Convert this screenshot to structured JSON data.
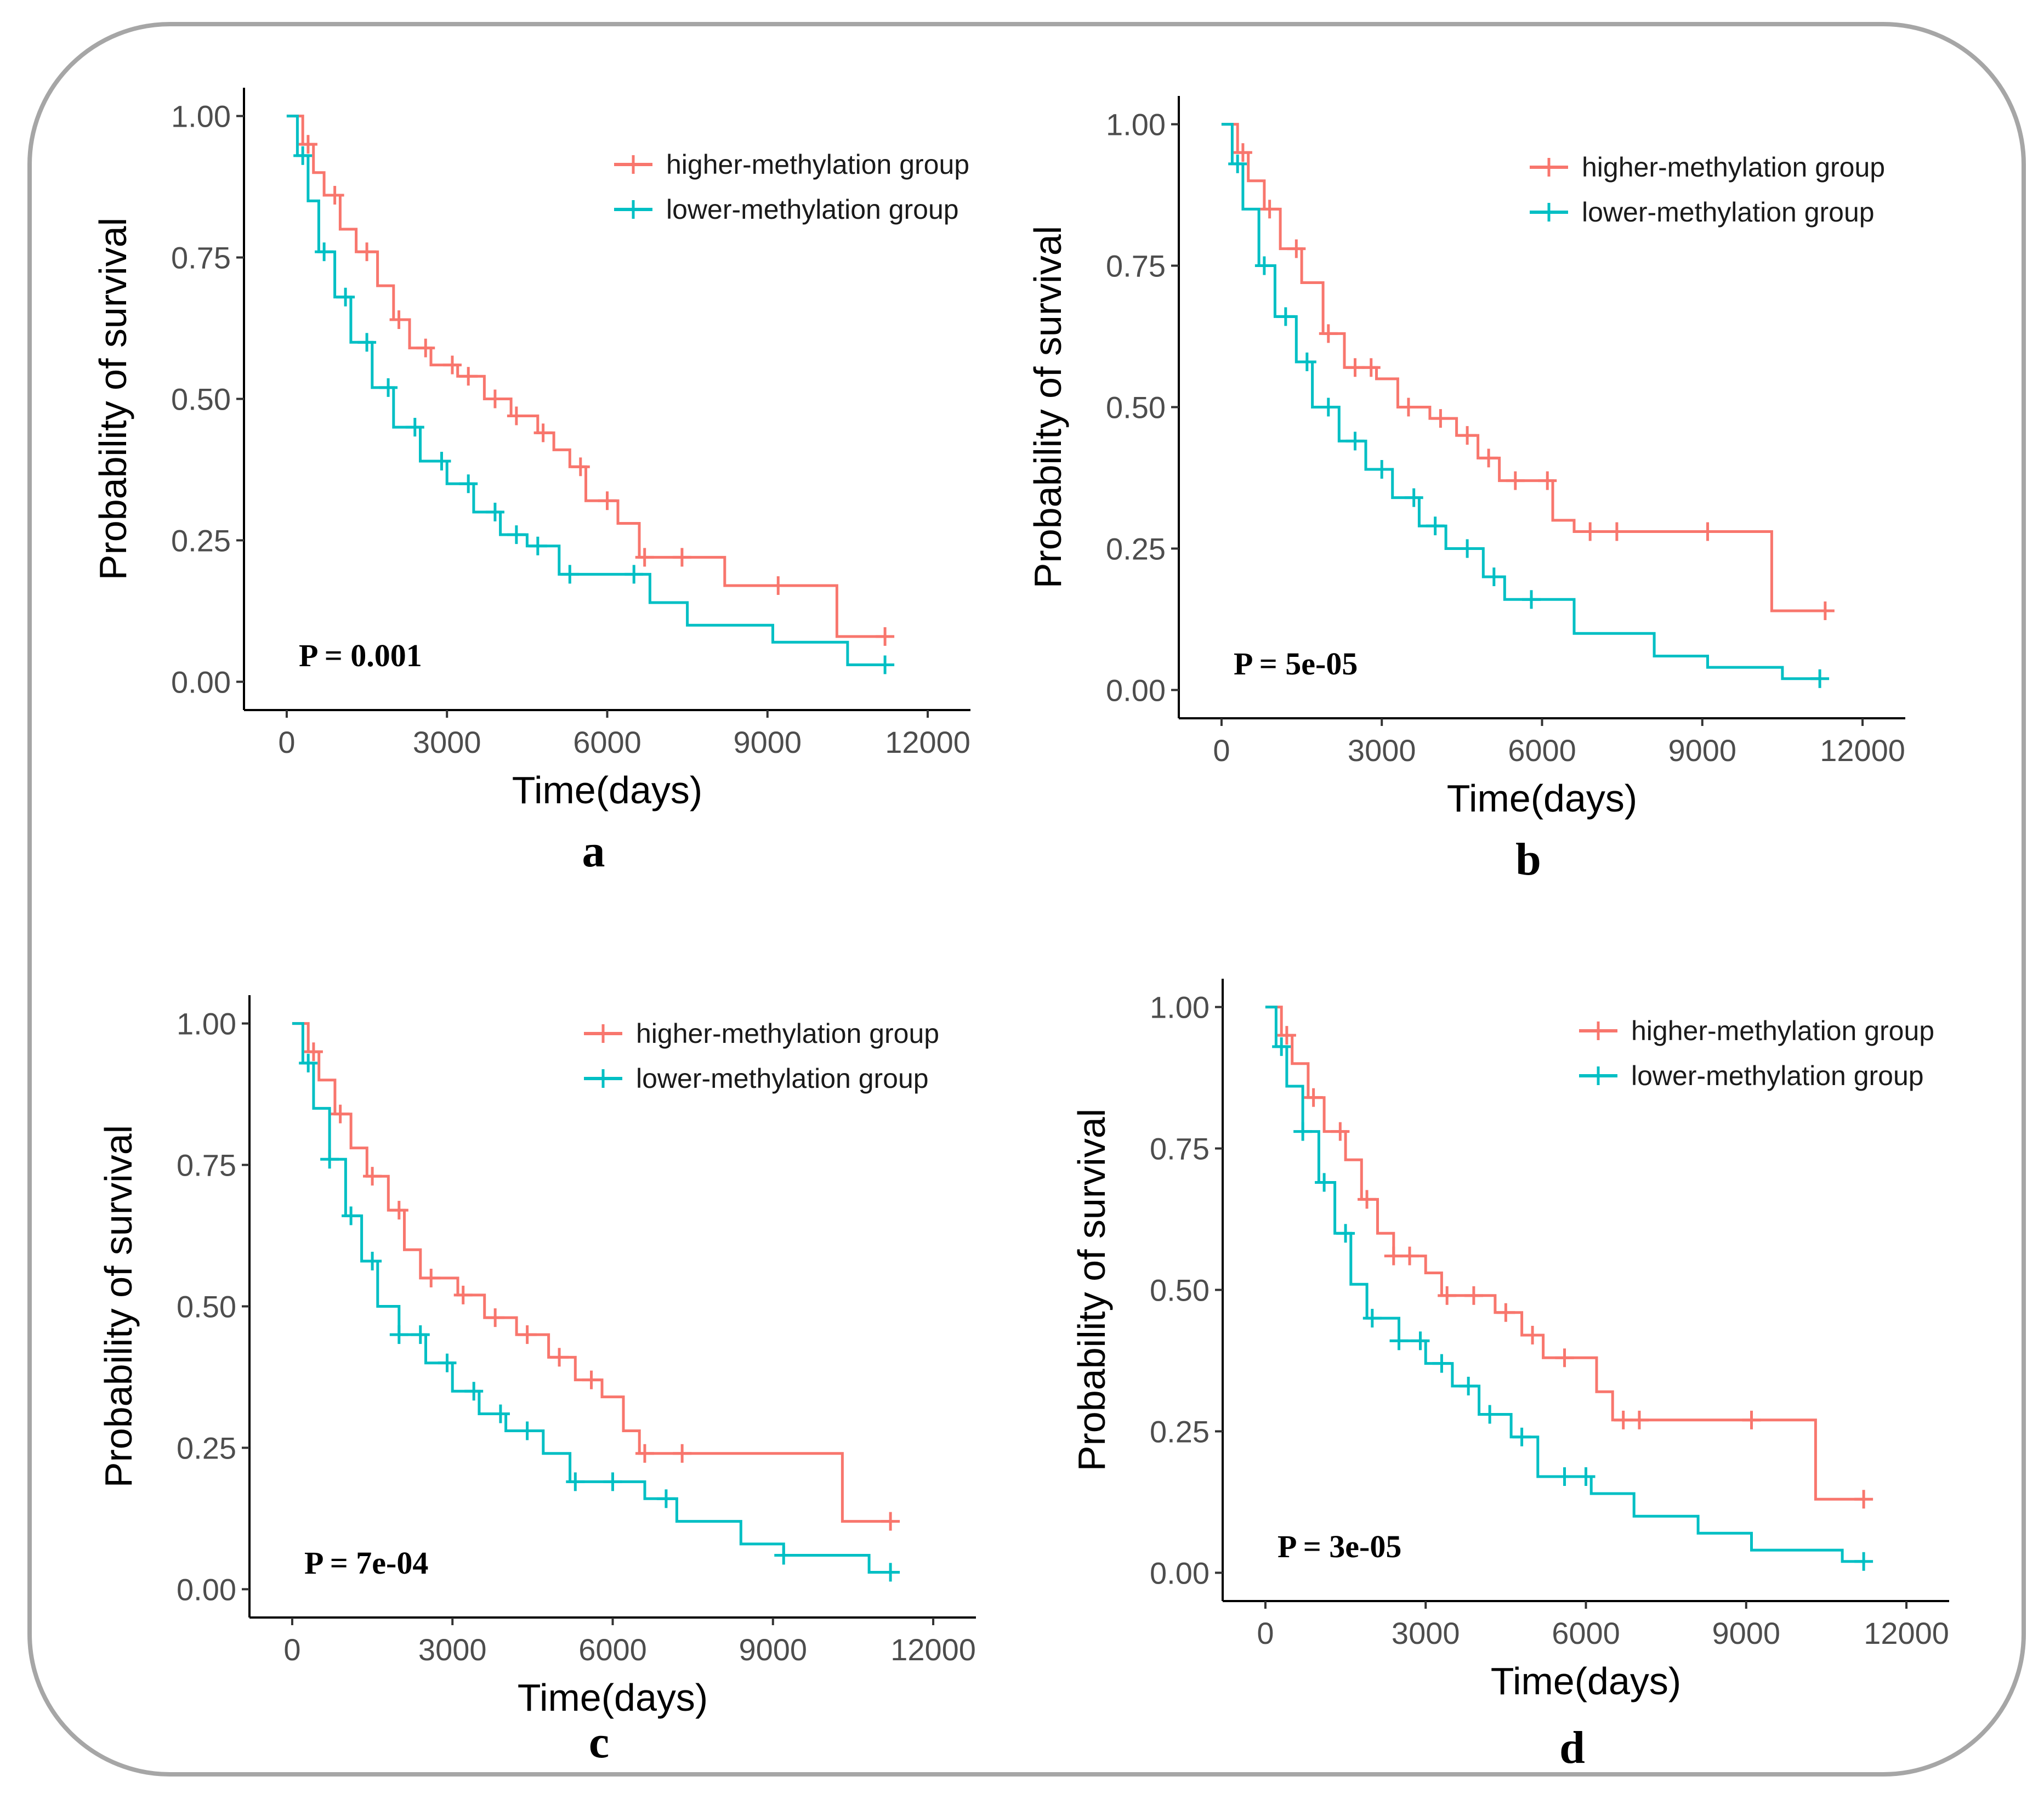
{
  "chart_data": [
    {
      "type": "line",
      "panel_label": "a",
      "xlabel": "Time(days)",
      "ylabel": "Probability of survival",
      "xlim": [
        -800,
        12800
      ],
      "ylim": [
        -0.05,
        1.05
      ],
      "x_ticks": [
        0,
        3000,
        6000,
        9000,
        12000
      ],
      "y_ticks": [
        "0.00",
        "0.25",
        "0.50",
        "0.75",
        "1.00"
      ],
      "annotation": "P = 0.001",
      "legend_position": "top-right",
      "series": [
        {
          "name": "higher-methylation group",
          "color": "#F8766D",
          "steps": [
            [
              0,
              1.0
            ],
            [
              300,
              0.95
            ],
            [
              500,
              0.9
            ],
            [
              700,
              0.86
            ],
            [
              1000,
              0.8
            ],
            [
              1300,
              0.76
            ],
            [
              1700,
              0.7
            ],
            [
              2000,
              0.64
            ],
            [
              2300,
              0.59
            ],
            [
              2700,
              0.56
            ],
            [
              3200,
              0.54
            ],
            [
              3700,
              0.5
            ],
            [
              4200,
              0.47
            ],
            [
              4700,
              0.44
            ],
            [
              5000,
              0.41
            ],
            [
              5300,
              0.38
            ],
            [
              5600,
              0.32
            ],
            [
              6200,
              0.28
            ],
            [
              6600,
              0.22
            ],
            [
              8200,
              0.17
            ],
            [
              10300,
              0.08
            ],
            [
              11200,
              0.08
            ]
          ],
          "censor_x": [
            400,
            900,
            1500,
            2100,
            2600,
            3100,
            3400,
            3900,
            4300,
            4800,
            5500,
            6000,
            6700,
            7400,
            9200,
            11200
          ]
        },
        {
          "name": "lower-methylation group",
          "color": "#00BFC4",
          "steps": [
            [
              0,
              1.0
            ],
            [
              200,
              0.93
            ],
            [
              400,
              0.85
            ],
            [
              600,
              0.76
            ],
            [
              900,
              0.68
            ],
            [
              1200,
              0.6
            ],
            [
              1600,
              0.52
            ],
            [
              2000,
              0.45
            ],
            [
              2500,
              0.39
            ],
            [
              3000,
              0.35
            ],
            [
              3500,
              0.3
            ],
            [
              4000,
              0.26
            ],
            [
              4500,
              0.24
            ],
            [
              5100,
              0.19
            ],
            [
              6800,
              0.14
            ],
            [
              7500,
              0.1
            ],
            [
              9100,
              0.07
            ],
            [
              10500,
              0.03
            ],
            [
              11200,
              0.03
            ]
          ],
          "censor_x": [
            300,
            700,
            1100,
            1500,
            1900,
            2400,
            2900,
            3400,
            3900,
            4300,
            4700,
            5300,
            6500,
            11200
          ]
        }
      ]
    },
    {
      "type": "line",
      "panel_label": "b",
      "xlabel": "Time(days)",
      "ylabel": "Probability of survival",
      "xlim": [
        -800,
        12800
      ],
      "ylim": [
        -0.05,
        1.05
      ],
      "x_ticks": [
        0,
        3000,
        6000,
        9000,
        12000
      ],
      "y_ticks": [
        "0.00",
        "0.25",
        "0.50",
        "0.75",
        "1.00"
      ],
      "annotation": "P = 5e-05",
      "legend_position": "top-right",
      "series": [
        {
          "name": "higher-methylation group",
          "color": "#F8766D",
          "steps": [
            [
              0,
              1.0
            ],
            [
              300,
              0.95
            ],
            [
              500,
              0.9
            ],
            [
              800,
              0.85
            ],
            [
              1100,
              0.78
            ],
            [
              1500,
              0.72
            ],
            [
              1900,
              0.63
            ],
            [
              2300,
              0.57
            ],
            [
              2900,
              0.55
            ],
            [
              3300,
              0.5
            ],
            [
              3900,
              0.48
            ],
            [
              4400,
              0.45
            ],
            [
              4800,
              0.41
            ],
            [
              5200,
              0.37
            ],
            [
              6200,
              0.3
            ],
            [
              6600,
              0.28
            ],
            [
              10300,
              0.14
            ],
            [
              11300,
              0.14
            ]
          ],
          "censor_x": [
            400,
            900,
            1400,
            2000,
            2500,
            2800,
            3500,
            4100,
            4600,
            5000,
            5500,
            6100,
            6900,
            7400,
            9100,
            11300
          ]
        },
        {
          "name": "lower-methylation group",
          "color": "#00BFC4",
          "steps": [
            [
              0,
              1.0
            ],
            [
              200,
              0.93
            ],
            [
              400,
              0.85
            ],
            [
              700,
              0.75
            ],
            [
              1000,
              0.66
            ],
            [
              1400,
              0.58
            ],
            [
              1700,
              0.5
            ],
            [
              2200,
              0.44
            ],
            [
              2700,
              0.39
            ],
            [
              3200,
              0.34
            ],
            [
              3700,
              0.29
            ],
            [
              4200,
              0.25
            ],
            [
              4900,
              0.2
            ],
            [
              5300,
              0.16
            ],
            [
              6600,
              0.1
            ],
            [
              8100,
              0.06
            ],
            [
              9100,
              0.04
            ],
            [
              10500,
              0.02
            ],
            [
              11200,
              0.02
            ]
          ],
          "censor_x": [
            300,
            800,
            1200,
            1600,
            2000,
            2500,
            3000,
            3600,
            4000,
            4600,
            5100,
            5800,
            11200
          ]
        }
      ]
    },
    {
      "type": "line",
      "panel_label": "c",
      "xlabel": "Time(days)",
      "ylabel": "Probability of survival",
      "xlim": [
        -800,
        12800
      ],
      "ylim": [
        -0.05,
        1.05
      ],
      "x_ticks": [
        0,
        3000,
        6000,
        9000,
        12000
      ],
      "y_ticks": [
        "0.00",
        "0.25",
        "0.50",
        "0.75",
        "1.00"
      ],
      "annotation": "P = 7e-04",
      "legend_position": "top-right",
      "series": [
        {
          "name": "higher-methylation group",
          "color": "#F8766D",
          "steps": [
            [
              0,
              1.0
            ],
            [
              300,
              0.95
            ],
            [
              500,
              0.9
            ],
            [
              800,
              0.84
            ],
            [
              1100,
              0.78
            ],
            [
              1400,
              0.73
            ],
            [
              1800,
              0.67
            ],
            [
              2100,
              0.6
            ],
            [
              2400,
              0.55
            ],
            [
              3100,
              0.52
            ],
            [
              3600,
              0.48
            ],
            [
              4200,
              0.45
            ],
            [
              4800,
              0.41
            ],
            [
              5300,
              0.37
            ],
            [
              5800,
              0.34
            ],
            [
              6200,
              0.28
            ],
            [
              6500,
              0.24
            ],
            [
              10300,
              0.12
            ],
            [
              11200,
              0.12
            ]
          ],
          "censor_x": [
            400,
            900,
            1500,
            2000,
            2600,
            3200,
            3800,
            4400,
            5000,
            5600,
            6600,
            7300,
            11200
          ]
        },
        {
          "name": "lower-methylation group",
          "color": "#00BFC4",
          "steps": [
            [
              0,
              1.0
            ],
            [
              200,
              0.93
            ],
            [
              400,
              0.85
            ],
            [
              700,
              0.76
            ],
            [
              1000,
              0.66
            ],
            [
              1300,
              0.58
            ],
            [
              1600,
              0.5
            ],
            [
              2000,
              0.45
            ],
            [
              2500,
              0.4
            ],
            [
              3000,
              0.35
            ],
            [
              3500,
              0.31
            ],
            [
              4000,
              0.28
            ],
            [
              4700,
              0.24
            ],
            [
              5200,
              0.19
            ],
            [
              6600,
              0.16
            ],
            [
              7200,
              0.12
            ],
            [
              8400,
              0.08
            ],
            [
              9200,
              0.06
            ],
            [
              10800,
              0.03
            ],
            [
              11200,
              0.03
            ]
          ],
          "censor_x": [
            300,
            700,
            1100,
            1500,
            2000,
            2400,
            2900,
            3400,
            3900,
            4400,
            5300,
            6000,
            7000,
            9200,
            11200
          ]
        }
      ]
    },
    {
      "type": "line",
      "panel_label": "d",
      "xlabel": "Time(days)",
      "ylabel": "Probability of survival",
      "xlim": [
        -800,
        12800
      ],
      "ylim": [
        -0.05,
        1.05
      ],
      "x_ticks": [
        0,
        3000,
        6000,
        9000,
        12000
      ],
      "y_ticks": [
        "0.00",
        "0.25",
        "0.50",
        "0.75",
        "1.00"
      ],
      "annotation": "P = 3e-05",
      "legend_position": "top-right",
      "series": [
        {
          "name": "higher-methylation group",
          "color": "#F8766D",
          "steps": [
            [
              0,
              1.0
            ],
            [
              300,
              0.95
            ],
            [
              500,
              0.9
            ],
            [
              800,
              0.84
            ],
            [
              1100,
              0.78
            ],
            [
              1500,
              0.73
            ],
            [
              1800,
              0.66
            ],
            [
              2100,
              0.6
            ],
            [
              2400,
              0.56
            ],
            [
              3000,
              0.53
            ],
            [
              3300,
              0.49
            ],
            [
              4300,
              0.46
            ],
            [
              4800,
              0.42
            ],
            [
              5200,
              0.38
            ],
            [
              6200,
              0.32
            ],
            [
              6500,
              0.27
            ],
            [
              10300,
              0.13
            ],
            [
              11200,
              0.13
            ]
          ],
          "censor_x": [
            400,
            900,
            1400,
            1900,
            2400,
            2700,
            3400,
            3900,
            4500,
            5000,
            5600,
            6700,
            7000,
            9100,
            11200
          ]
        },
        {
          "name": "lower-methylation group",
          "color": "#00BFC4",
          "steps": [
            [
              0,
              1.0
            ],
            [
              200,
              0.93
            ],
            [
              400,
              0.86
            ],
            [
              700,
              0.78
            ],
            [
              1000,
              0.69
            ],
            [
              1300,
              0.6
            ],
            [
              1600,
              0.51
            ],
            [
              1900,
              0.45
            ],
            [
              2500,
              0.41
            ],
            [
              3000,
              0.37
            ],
            [
              3500,
              0.33
            ],
            [
              4000,
              0.28
            ],
            [
              4600,
              0.24
            ],
            [
              5100,
              0.17
            ],
            [
              6100,
              0.14
            ],
            [
              6900,
              0.1
            ],
            [
              8100,
              0.07
            ],
            [
              9100,
              0.04
            ],
            [
              10800,
              0.02
            ],
            [
              11200,
              0.02
            ]
          ],
          "censor_x": [
            300,
            700,
            1100,
            1500,
            2000,
            2500,
            2900,
            3300,
            3800,
            4200,
            4800,
            5600,
            6000,
            11200
          ]
        }
      ]
    }
  ]
}
